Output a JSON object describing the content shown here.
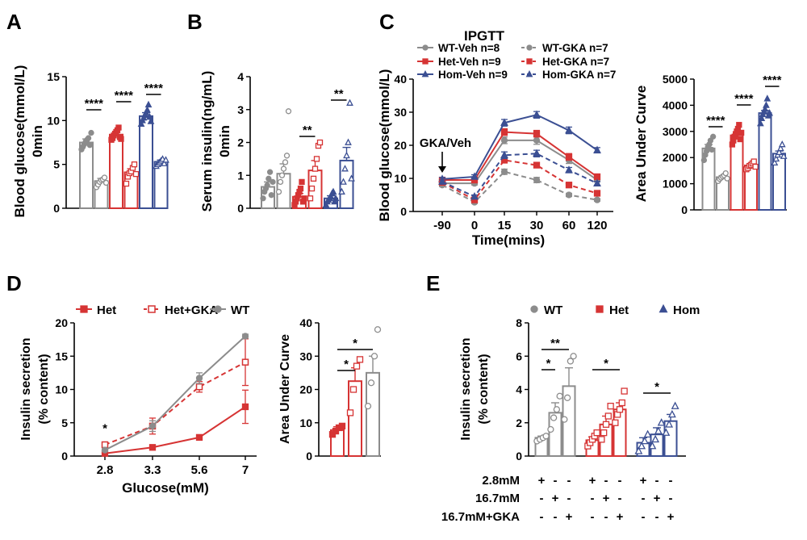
{
  "colors": {
    "wt": "#8C8C8C",
    "het": "#D63434",
    "hom": "#3B4F93",
    "black": "#000000"
  },
  "panels": {
    "A": "A",
    "B": "B",
    "C": "C",
    "D": "D",
    "E": "E"
  },
  "chart_data": [
    {
      "id": "A",
      "type": "bar",
      "ylabel_lines": [
        "Blood glucose(mmol/L)",
        "0min"
      ],
      "ylim": [
        0,
        15
      ],
      "yticks": [
        0,
        5,
        10,
        15
      ],
      "bars": [
        {
          "group": "WT-Veh",
          "value": 7.5,
          "err": 0.4,
          "style": "filled",
          "color": "wt",
          "points": [
            6.7,
            7.0,
            7.3,
            7.6,
            7.8,
            8.0,
            7.2,
            8.6
          ]
        },
        {
          "group": "WT-GKA",
          "value": 3.1,
          "err": 0.3,
          "style": "open",
          "color": "wt",
          "points": [
            2.4,
            2.7,
            3.0,
            3.2,
            3.3,
            3.5,
            2.9
          ]
        },
        {
          "group": "Het-Veh",
          "value": 8.4,
          "err": 0.3,
          "style": "filled",
          "color": "het",
          "points": [
            7.8,
            8.0,
            8.3,
            8.5,
            8.7,
            8.9,
            9.2,
            8.1,
            7.9
          ]
        },
        {
          "group": "Het-GKA",
          "value": 4.1,
          "err": 0.4,
          "style": "open",
          "color": "het",
          "points": [
            2.8,
            3.6,
            4.0,
            4.2,
            4.6,
            5.0,
            3.9
          ]
        },
        {
          "group": "Hom-Veh",
          "value": 10.5,
          "err": 0.4,
          "style": "filled",
          "color": "hom",
          "points": [
            9.6,
            10.0,
            10.3,
            10.6,
            10.9,
            11.2,
            11.8,
            10.4,
            9.9
          ]
        },
        {
          "group": "Hom-GKA",
          "value": 5.3,
          "err": 0.2,
          "style": "open",
          "color": "hom",
          "points": [
            4.8,
            5.0,
            5.2,
            5.4,
            5.6,
            5.1,
            5.5
          ]
        }
      ],
      "significance": [
        {
          "from": 0,
          "to": 1,
          "label": "****"
        },
        {
          "from": 2,
          "to": 3,
          "label": "****"
        },
        {
          "from": 4,
          "to": 5,
          "label": "****"
        }
      ]
    },
    {
      "id": "B",
      "type": "bar",
      "ylabel_lines": [
        "Serum insulin(ng/mL)",
        "0min"
      ],
      "ylim": [
        0,
        4
      ],
      "yticks": [
        0,
        1,
        2,
        3,
        4
      ],
      "bars": [
        {
          "group": "WT-Veh",
          "value": 0.65,
          "err": 0.15,
          "style": "filled",
          "color": "wt",
          "points": [
            0.3,
            0.5,
            0.6,
            0.7,
            0.9,
            1.1,
            0.4,
            0.8
          ]
        },
        {
          "group": "WT-GKA",
          "value": 1.05,
          "err": 0.3,
          "style": "open",
          "color": "wt",
          "points": [
            0.5,
            0.8,
            1.0,
            1.2,
            1.4,
            1.6,
            2.95
          ]
        },
        {
          "group": "Het-Veh",
          "value": 0.35,
          "err": 0.1,
          "style": "filled",
          "color": "het",
          "points": [
            0.1,
            0.2,
            0.3,
            0.4,
            0.5,
            0.6,
            0.8,
            0.2,
            0.3
          ]
        },
        {
          "group": "Het-GKA",
          "value": 1.15,
          "err": 0.3,
          "style": "open",
          "color": "het",
          "points": [
            0.3,
            0.6,
            0.9,
            1.2,
            1.5,
            1.9,
            2.0
          ]
        },
        {
          "group": "Hom-Veh",
          "value": 0.3,
          "err": 0.08,
          "style": "filled",
          "color": "hom",
          "points": [
            0.1,
            0.2,
            0.25,
            0.3,
            0.35,
            0.45,
            0.5,
            0.2,
            0.3
          ]
        },
        {
          "group": "Hom-GKA",
          "value": 1.45,
          "err": 0.4,
          "style": "open",
          "color": "hom",
          "points": [
            0.5,
            0.8,
            1.2,
            1.6,
            2.0,
            3.2,
            0.9
          ]
        }
      ],
      "significance": [
        {
          "from": 2,
          "to": 3,
          "label": "**"
        },
        {
          "from": 4,
          "to": 5,
          "label": "**"
        }
      ]
    },
    {
      "id": "C",
      "type": "line",
      "title": "IPGTT",
      "xlabel": "Time(mins)",
      "ylabel": "Blood glucose(mmol/L)",
      "x": [
        "-90",
        "0",
        "15",
        "30",
        "60",
        "120"
      ],
      "ylim": [
        0,
        40
      ],
      "yticks": [
        0,
        10,
        20,
        30,
        40
      ],
      "annotation": "GKA/Veh",
      "series": [
        {
          "name": "WT-Veh n=8",
          "color": "wt",
          "dashed": false,
          "marker": "circle",
          "values": [
            8.5,
            8.5,
            21.5,
            21.5,
            15.5,
            9.5
          ],
          "err": [
            0.5,
            0.5,
            1.0,
            1.2,
            1.0,
            0.6
          ]
        },
        {
          "name": "Het-Veh n=9",
          "color": "het",
          "dashed": false,
          "marker": "square",
          "values": [
            9.5,
            9.5,
            24.0,
            23.5,
            16.5,
            10.5
          ],
          "err": [
            0.5,
            0.5,
            1.0,
            1.0,
            1.0,
            0.6
          ]
        },
        {
          "name": "Hom-Veh n=9",
          "color": "hom",
          "dashed": false,
          "marker": "triangle",
          "values": [
            9.8,
            10.5,
            26.8,
            29.2,
            24.5,
            18.5
          ],
          "err": [
            0.5,
            0.6,
            1.0,
            1.0,
            1.0,
            0.8
          ]
        },
        {
          "name": "WT-GKA n=7",
          "color": "wt",
          "dashed": true,
          "marker": "circle",
          "values": [
            8.0,
            2.8,
            12.0,
            9.5,
            5.0,
            3.5
          ],
          "err": [
            0.5,
            0.4,
            0.8,
            0.8,
            0.5,
            0.4
          ]
        },
        {
          "name": "Het-GKA n=7",
          "color": "het",
          "dashed": true,
          "marker": "square",
          "values": [
            8.8,
            3.5,
            15.5,
            14.0,
            8.0,
            5.5
          ],
          "err": [
            0.5,
            0.4,
            0.8,
            0.8,
            0.6,
            0.5
          ]
        },
        {
          "name": "Hom-GKA n=7",
          "color": "hom",
          "dashed": true,
          "marker": "triangle",
          "values": [
            9.0,
            4.5,
            17.0,
            17.5,
            12.5,
            8.5
          ],
          "err": [
            0.5,
            0.5,
            1.0,
            1.0,
            0.8,
            0.6
          ]
        }
      ]
    },
    {
      "id": "C_auc",
      "type": "bar",
      "ylabel_lines": [
        "Area Under Curve"
      ],
      "ylim": [
        0,
        5000
      ],
      "yticks": [
        0,
        1000,
        2000,
        3000,
        4000,
        5000
      ],
      "bars": [
        {
          "group": "WT-Veh",
          "value": 2350,
          "err": 150,
          "style": "filled",
          "color": "wt",
          "points": [
            1900,
            2100,
            2250,
            2400,
            2500,
            2650,
            2300,
            2800
          ]
        },
        {
          "group": "WT-GKA",
          "value": 1250,
          "err": 60,
          "style": "open",
          "color": "wt",
          "points": [
            1100,
            1180,
            1230,
            1280,
            1320,
            1400,
            1200
          ]
        },
        {
          "group": "Het-Veh",
          "value": 2850,
          "err": 120,
          "style": "filled",
          "color": "het",
          "points": [
            2500,
            2650,
            2800,
            2900,
            3000,
            3100,
            3250,
            2700,
            2950
          ]
        },
        {
          "group": "Het-GKA",
          "value": 1700,
          "err": 60,
          "style": "open",
          "color": "het",
          "points": [
            1550,
            1600,
            1680,
            1720,
            1780,
            1850,
            1650
          ]
        },
        {
          "group": "Hom-Veh",
          "value": 3700,
          "err": 100,
          "style": "filled",
          "color": "hom",
          "points": [
            3300,
            3500,
            3650,
            3750,
            3850,
            4000,
            4250,
            3600,
            3700
          ]
        },
        {
          "group": "Hom-GKA",
          "value": 2150,
          "err": 100,
          "style": "open",
          "color": "hom",
          "points": [
            1800,
            1950,
            2100,
            2200,
            2350,
            2500,
            2050
          ]
        }
      ],
      "significance": [
        {
          "from": 0,
          "to": 1,
          "label": "****"
        },
        {
          "from": 2,
          "to": 3,
          "label": "****"
        },
        {
          "from": 4,
          "to": 5,
          "label": "****"
        }
      ]
    },
    {
      "id": "D",
      "type": "line",
      "xlabel": "Glucose(mM)",
      "ylabel_lines": [
        "Insulin secretion",
        "(% content)"
      ],
      "x": [
        "2.8",
        "3.3",
        "5.6",
        "7"
      ],
      "ylim": [
        0,
        20
      ],
      "yticks": [
        0,
        5,
        10,
        15,
        20
      ],
      "series": [
        {
          "name": "Het",
          "color": "het",
          "dashed": false,
          "marker": "square",
          "values": [
            0.4,
            1.3,
            2.8,
            7.4
          ],
          "err": [
            0.2,
            0.2,
            0.4,
            2.5
          ]
        },
        {
          "name": "Het+GKA",
          "color": "het",
          "dashed": true,
          "marker": "square-open",
          "values": [
            1.7,
            4.5,
            10.4,
            14.1
          ],
          "err": [
            0.3,
            1.2,
            0.8,
            3.5
          ]
        },
        {
          "name": "WT",
          "color": "wt",
          "dashed": false,
          "marker": "circle",
          "values": [
            0.9,
            4.5,
            11.7,
            18.0
          ],
          "err": [
            0.2,
            0.8,
            0.8,
            0.3
          ]
        }
      ],
      "annotations": [
        {
          "x": "2.8",
          "label": "*"
        }
      ]
    },
    {
      "id": "D_auc",
      "type": "bar",
      "ylabel_lines": [
        "Area Under Curve"
      ],
      "ylim": [
        0,
        40
      ],
      "yticks": [
        0,
        10,
        20,
        30,
        40
      ],
      "bars": [
        {
          "group": "Het",
          "value": 7.8,
          "err": 1.0,
          "style": "filled",
          "color": "het",
          "points": [
            6.5,
            7.5,
            8.5,
            9.0
          ]
        },
        {
          "group": "Het+GKA",
          "value": 22.5,
          "err": 4.0,
          "style": "open",
          "color": "het",
          "points": [
            13.0,
            20.0,
            27.0,
            29.0
          ]
        },
        {
          "group": "WT",
          "value": 25.0,
          "err": 5.0,
          "style": "open",
          "color": "wt",
          "points": [
            15.0,
            22.0,
            30.0,
            38.0
          ]
        }
      ],
      "significance": [
        {
          "from": 0,
          "to": 1,
          "label": "*"
        },
        {
          "from": 0,
          "to": 2,
          "label": "*"
        }
      ]
    },
    {
      "id": "E",
      "type": "bar",
      "ylabel_lines": [
        "Insulin secretion",
        "(% content)"
      ],
      "ylim": [
        0,
        8
      ],
      "yticks": [
        0,
        2,
        4,
        6,
        8
      ],
      "legend": [
        {
          "name": "WT",
          "color": "wt",
          "marker": "circle"
        },
        {
          "name": "Het",
          "color": "het",
          "marker": "square"
        },
        {
          "name": "Hom",
          "color": "hom",
          "marker": "triangle"
        }
      ],
      "bars": [
        {
          "group": "WT 2.8mM",
          "value": 1.1,
          "err": 0.1,
          "style": "open",
          "color": "wt",
          "points": [
            0.9,
            1.0,
            1.1,
            1.2
          ]
        },
        {
          "group": "WT 16.7mM",
          "value": 2.6,
          "err": 0.6,
          "style": "open",
          "color": "wt",
          "points": [
            1.6,
            2.3,
            2.8,
            3.6
          ]
        },
        {
          "group": "WT 16.7mM+GKA",
          "value": 4.2,
          "err": 1.1,
          "style": "open",
          "color": "wt",
          "points": [
            2.2,
            3.5,
            5.7,
            6.0
          ]
        },
        {
          "group": "Het 2.8mM",
          "value": 0.95,
          "err": 0.2,
          "style": "open",
          "color": "het",
          "points": [
            0.6,
            0.8,
            1.0,
            1.2,
            1.4
          ]
        },
        {
          "group": "Het 16.7mM",
          "value": 1.9,
          "err": 0.5,
          "style": "open",
          "color": "het",
          "points": [
            1.0,
            1.4,
            1.9,
            2.4,
            3.0
          ]
        },
        {
          "group": "Het 16.7mM+GKA",
          "value": 2.8,
          "err": 0.4,
          "style": "open",
          "color": "het",
          "points": [
            2.0,
            2.5,
            2.8,
            3.2,
            3.9
          ]
        },
        {
          "group": "Hom 2.8mM",
          "value": 0.8,
          "err": 0.3,
          "style": "open",
          "color": "hom",
          "points": [
            0.3,
            0.6,
            0.9,
            1.3
          ]
        },
        {
          "group": "Hom 16.7mM",
          "value": 1.3,
          "err": 0.4,
          "style": "open",
          "color": "hom",
          "points": [
            0.6,
            1.0,
            1.5,
            2.0
          ]
        },
        {
          "group": "Hom 16.7mM+GKA",
          "value": 2.1,
          "err": 0.4,
          "style": "open",
          "color": "hom",
          "points": [
            1.4,
            1.9,
            2.5,
            3.0
          ]
        }
      ],
      "significance": [
        {
          "from": 0,
          "to": 1,
          "label": "*"
        },
        {
          "from": 0,
          "to": 2,
          "label": "**"
        },
        {
          "from": 3,
          "to": 5,
          "label": "*"
        },
        {
          "from": 6,
          "to": 8,
          "label": "*"
        }
      ],
      "conditions": {
        "rows": [
          {
            "label": "2.8mM",
            "marks": [
              "+",
              "-",
              "-",
              "+",
              "-",
              "-",
              "+",
              "-",
              "-"
            ]
          },
          {
            "label": "16.7mM",
            "marks": [
              "-",
              "+",
              "-",
              "-",
              "+",
              "-",
              "-",
              "+",
              "-"
            ]
          },
          {
            "label": "16.7mM+GKA",
            "marks": [
              "-",
              "-",
              "+",
              "-",
              "-",
              "+",
              "-",
              "-",
              "+"
            ]
          }
        ]
      }
    }
  ]
}
